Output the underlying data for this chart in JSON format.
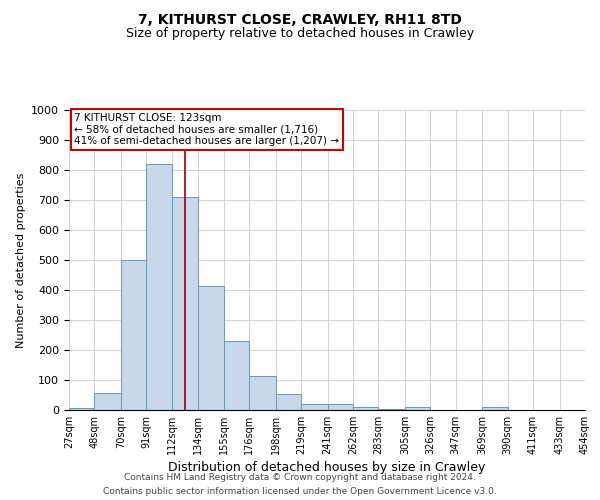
{
  "title": "7, KITHURST CLOSE, CRAWLEY, RH11 8TD",
  "subtitle": "Size of property relative to detached houses in Crawley",
  "xlabel": "Distribution of detached houses by size in Crawley",
  "ylabel": "Number of detached properties",
  "footer_line1": "Contains HM Land Registry data © Crown copyright and database right 2024.",
  "footer_line2": "Contains public sector information licensed under the Open Government Licence v3.0.",
  "bin_labels": [
    "27sqm",
    "48sqm",
    "70sqm",
    "91sqm",
    "112sqm",
    "134sqm",
    "155sqm",
    "176sqm",
    "198sqm",
    "219sqm",
    "241sqm",
    "262sqm",
    "283sqm",
    "305sqm",
    "326sqm",
    "347sqm",
    "369sqm",
    "390sqm",
    "411sqm",
    "433sqm",
    "454sqm"
  ],
  "bin_edges": [
    27,
    48,
    70,
    91,
    112,
    134,
    155,
    176,
    198,
    219,
    241,
    262,
    283,
    305,
    326,
    347,
    369,
    390,
    411,
    433,
    454
  ],
  "bar_heights": [
    7,
    57,
    500,
    820,
    710,
    415,
    230,
    115,
    55,
    20,
    20,
    10,
    5,
    10,
    0,
    0,
    10,
    0,
    0,
    0
  ],
  "bar_color": "#c8d8ea",
  "bar_edgecolor": "#6899bb",
  "property_line_x": 123,
  "property_line_color": "#990000",
  "ylim": [
    0,
    1000
  ],
  "yticks": [
    0,
    100,
    200,
    300,
    400,
    500,
    600,
    700,
    800,
    900,
    1000
  ],
  "annotation_text": "7 KITHURST CLOSE: 123sqm\n← 58% of detached houses are smaller (1,716)\n41% of semi-detached houses are larger (1,207) →",
  "annotation_box_color": "#cc0000",
  "grid_color": "#cccccc",
  "background_color": "#ffffff",
  "title_fontsize": 10,
  "subtitle_fontsize": 9,
  "xlabel_fontsize": 9,
  "ylabel_fontsize": 8,
  "tick_fontsize": 8,
  "annot_fontsize": 7.5,
  "footer_fontsize": 6.5
}
